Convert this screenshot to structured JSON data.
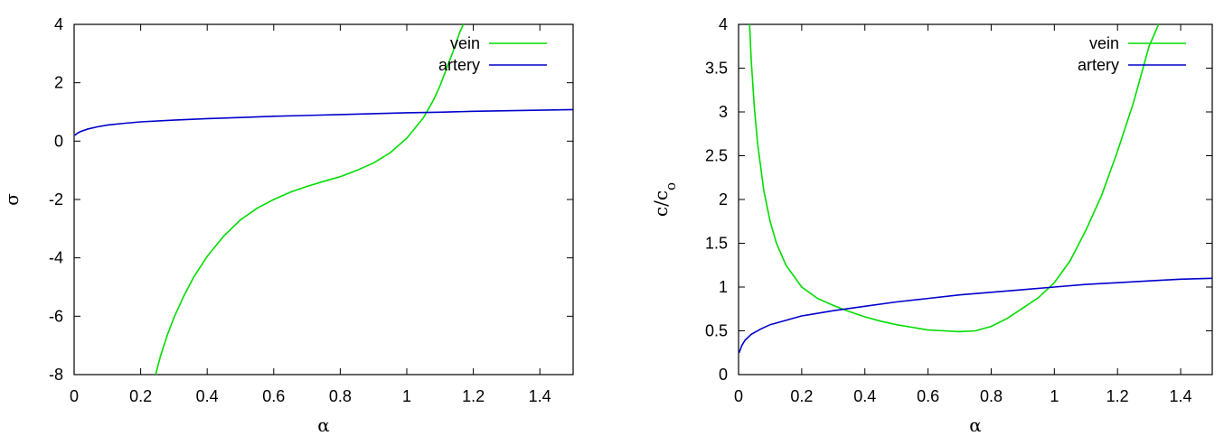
{
  "chart_data": [
    {
      "type": "line",
      "xlabel": "α",
      "ylabel": "σ",
      "xlim": [
        0,
        1.5
      ],
      "ylim": [
        -8,
        4
      ],
      "xticks": [
        "0",
        "0.2",
        "0.4",
        "0.6",
        "0.8",
        "1",
        "1.2",
        "1.4"
      ],
      "xtick_values": [
        0,
        0.2,
        0.4,
        0.6,
        0.8,
        1.0,
        1.2,
        1.4
      ],
      "yticks": [
        "-8",
        "-6",
        "-4",
        "-2",
        "0",
        "2",
        "4"
      ],
      "ytick_values": [
        -8,
        -6,
        -4,
        -2,
        0,
        2,
        4
      ],
      "grid": false,
      "legend": "top-right",
      "series": [
        {
          "name": "vein",
          "color": "#00dd00",
          "x": [
            0.245,
            0.26,
            0.28,
            0.3,
            0.33,
            0.36,
            0.4,
            0.45,
            0.5,
            0.55,
            0.6,
            0.65,
            0.7,
            0.75,
            0.8,
            0.85,
            0.9,
            0.95,
            1.0,
            1.05,
            1.08,
            1.1,
            1.12,
            1.14,
            1.16,
            1.17
          ],
          "y": [
            -8.0,
            -7.35,
            -6.65,
            -6.05,
            -5.3,
            -4.65,
            -3.95,
            -3.25,
            -2.7,
            -2.3,
            -2.0,
            -1.75,
            -1.55,
            -1.38,
            -1.22,
            -1.0,
            -0.75,
            -0.4,
            0.1,
            0.8,
            1.4,
            1.9,
            2.5,
            3.1,
            3.75,
            4.0
          ]
        },
        {
          "name": "artery",
          "color": "#0000cc",
          "x": [
            0.002,
            0.01,
            0.02,
            0.04,
            0.07,
            0.1,
            0.15,
            0.2,
            0.3,
            0.4,
            0.5,
            0.6,
            0.7,
            0.8,
            0.9,
            1.0,
            1.1,
            1.2,
            1.3,
            1.4,
            1.5
          ],
          "y": [
            0.2,
            0.27,
            0.33,
            0.41,
            0.49,
            0.55,
            0.61,
            0.66,
            0.72,
            0.77,
            0.81,
            0.85,
            0.88,
            0.91,
            0.94,
            0.97,
            0.99,
            1.02,
            1.04,
            1.06,
            1.08
          ]
        }
      ]
    },
    {
      "type": "line",
      "xlabel": "α",
      "ylabel": "c/c",
      "ylabel_sub": "o",
      "xlim": [
        0,
        1.5
      ],
      "ylim": [
        0,
        4
      ],
      "xticks": [
        "0",
        "0.2",
        "0.4",
        "0.6",
        "0.8",
        "1",
        "1.2",
        "1.4"
      ],
      "xtick_values": [
        0,
        0.2,
        0.4,
        0.6,
        0.8,
        1.0,
        1.2,
        1.4
      ],
      "yticks": [
        "0",
        "0.5",
        "1",
        "1.5",
        "2",
        "2.5",
        "3",
        "3.5",
        "4"
      ],
      "ytick_values": [
        0,
        0.5,
        1,
        1.5,
        2,
        2.5,
        3,
        3.5,
        4
      ],
      "grid": false,
      "legend": "top-right",
      "series": [
        {
          "name": "vein",
          "color": "#00dd00",
          "x": [
            0.035,
            0.04,
            0.05,
            0.06,
            0.08,
            0.1,
            0.12,
            0.15,
            0.2,
            0.25,
            0.3,
            0.35,
            0.4,
            0.45,
            0.5,
            0.55,
            0.6,
            0.65,
            0.7,
            0.75,
            0.8,
            0.85,
            0.9,
            0.95,
            1.0,
            1.05,
            1.1,
            1.15,
            1.2,
            1.25,
            1.3,
            1.33
          ],
          "y": [
            4.0,
            3.6,
            3.05,
            2.65,
            2.1,
            1.75,
            1.5,
            1.25,
            1.0,
            0.87,
            0.79,
            0.72,
            0.66,
            0.61,
            0.57,
            0.54,
            0.51,
            0.5,
            0.49,
            0.5,
            0.55,
            0.64,
            0.76,
            0.88,
            1.05,
            1.3,
            1.65,
            2.05,
            2.55,
            3.1,
            3.75,
            4.0
          ]
        },
        {
          "name": "artery",
          "color": "#0000cc",
          "x": [
            0.002,
            0.01,
            0.02,
            0.04,
            0.07,
            0.1,
            0.15,
            0.2,
            0.3,
            0.4,
            0.5,
            0.6,
            0.7,
            0.8,
            0.9,
            1.0,
            1.1,
            1.2,
            1.3,
            1.4,
            1.5
          ],
          "y": [
            0.25,
            0.33,
            0.39,
            0.46,
            0.52,
            0.57,
            0.62,
            0.67,
            0.73,
            0.78,
            0.83,
            0.87,
            0.91,
            0.94,
            0.97,
            1.0,
            1.03,
            1.05,
            1.07,
            1.09,
            1.1
          ]
        }
      ]
    }
  ]
}
